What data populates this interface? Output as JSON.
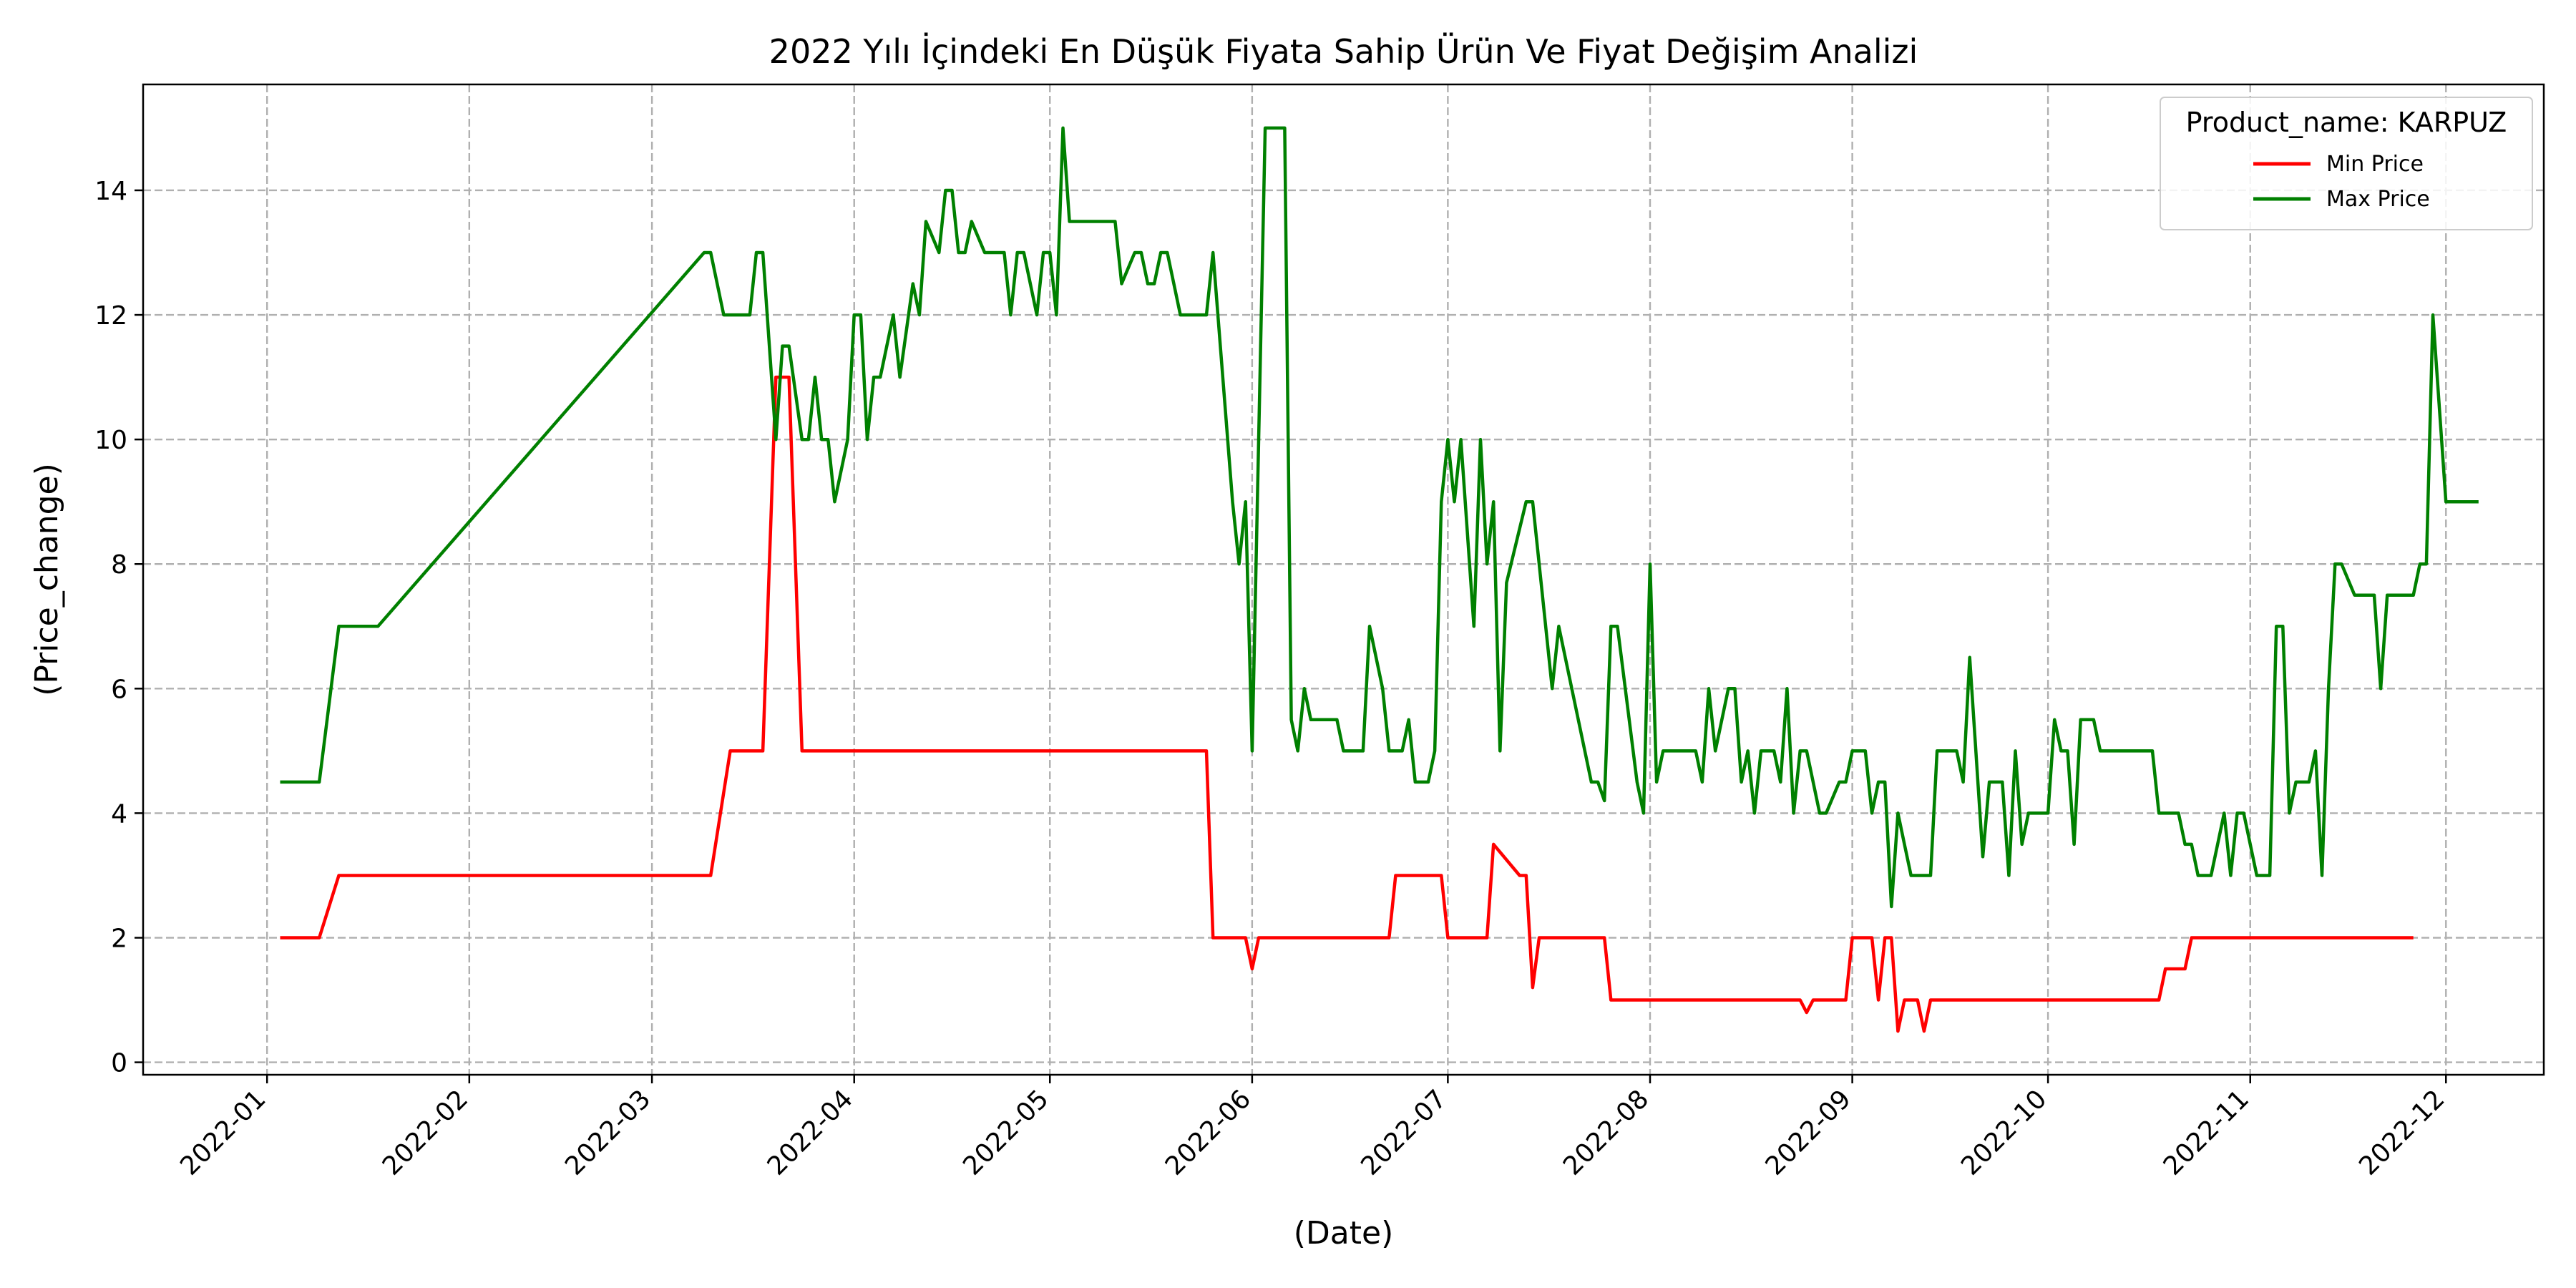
{
  "chart_data": {
    "type": "line",
    "title": "2022 Yılı İçindeki En Düşük Fiyata Sahip Ürün Ve Fiyat Değişim Analizi",
    "xlabel": "(Date)",
    "ylabel": "(Price_change)",
    "xlim": [
      "2021-12-13",
      "2022-12-16"
    ],
    "ylim": [
      -0.2,
      15.7
    ],
    "x_ticks": [
      "2022-01-01",
      "2022-02-01",
      "2022-03-01",
      "2022-04-01",
      "2022-05-01",
      "2022-06-01",
      "2022-07-01",
      "2022-08-01",
      "2022-09-01",
      "2022-10-01",
      "2022-11-01",
      "2022-12-01"
    ],
    "y_ticks": [
      0,
      2,
      4,
      6,
      8,
      10,
      12,
      14
    ],
    "grid": true,
    "legend": {
      "title": "Product_name: KARPUZ",
      "placement": "top-right"
    },
    "series": [
      {
        "name": "Min Price",
        "color": "#ff0000",
        "points": [
          [
            "2022-01-03",
            2
          ],
          [
            "2022-01-09",
            2
          ],
          [
            "2022-01-12",
            3
          ],
          [
            "2022-03-10",
            3
          ],
          [
            "2022-03-13",
            5
          ],
          [
            "2022-03-18",
            5
          ],
          [
            "2022-03-20",
            11
          ],
          [
            "2022-03-22",
            11
          ],
          [
            "2022-03-24",
            5
          ],
          [
            "2022-05-25",
            5
          ],
          [
            "2022-05-26",
            2
          ],
          [
            "2022-05-31",
            2
          ],
          [
            "2022-06-01",
            1.5
          ],
          [
            "2022-06-02",
            2
          ],
          [
            "2022-06-22",
            2
          ],
          [
            "2022-06-23",
            3
          ],
          [
            "2022-06-30",
            3
          ],
          [
            "2022-07-01",
            2
          ],
          [
            "2022-07-07",
            2
          ],
          [
            "2022-07-08",
            3.5
          ],
          [
            "2022-07-12",
            3
          ],
          [
            "2022-07-13",
            3
          ],
          [
            "2022-07-14",
            1.2
          ],
          [
            "2022-07-15",
            2
          ],
          [
            "2022-07-25",
            2
          ],
          [
            "2022-07-26",
            1
          ],
          [
            "2022-08-24",
            1
          ],
          [
            "2022-08-25",
            0.8
          ],
          [
            "2022-08-26",
            1
          ],
          [
            "2022-08-31",
            1
          ],
          [
            "2022-09-01",
            2
          ],
          [
            "2022-09-04",
            2
          ],
          [
            "2022-09-05",
            1
          ],
          [
            "2022-09-06",
            2
          ],
          [
            "2022-09-07",
            2
          ],
          [
            "2022-09-08",
            0.5
          ],
          [
            "2022-09-09",
            1
          ],
          [
            "2022-09-11",
            1
          ],
          [
            "2022-09-12",
            0.5
          ],
          [
            "2022-09-13",
            1
          ],
          [
            "2022-10-18",
            1
          ],
          [
            "2022-10-19",
            1.5
          ],
          [
            "2022-10-22",
            1.5
          ],
          [
            "2022-10-23",
            2
          ],
          [
            "2022-11-26",
            2
          ]
        ]
      },
      {
        "name": "Max Price",
        "color": "#008000",
        "points": [
          [
            "2022-01-03",
            4.5
          ],
          [
            "2022-01-09",
            4.5
          ],
          [
            "2022-01-12",
            7
          ],
          [
            "2022-01-18",
            7
          ],
          [
            "2022-03-09",
            13
          ],
          [
            "2022-03-10",
            13
          ],
          [
            "2022-03-12",
            12
          ],
          [
            "2022-03-16",
            12
          ],
          [
            "2022-03-17",
            13
          ],
          [
            "2022-03-18",
            13
          ],
          [
            "2022-03-20",
            10
          ],
          [
            "2022-03-21",
            11.5
          ],
          [
            "2022-03-22",
            11.5
          ],
          [
            "2022-03-24",
            10
          ],
          [
            "2022-03-25",
            10
          ],
          [
            "2022-03-26",
            11
          ],
          [
            "2022-03-27",
            10
          ],
          [
            "2022-03-28",
            10
          ],
          [
            "2022-03-29",
            9
          ],
          [
            "2022-03-31",
            10
          ],
          [
            "2022-04-01",
            12
          ],
          [
            "2022-04-02",
            12
          ],
          [
            "2022-04-03",
            10
          ],
          [
            "2022-04-04",
            11
          ],
          [
            "2022-04-05",
            11
          ],
          [
            "2022-04-07",
            12
          ],
          [
            "2022-04-08",
            11
          ],
          [
            "2022-04-10",
            12.5
          ],
          [
            "2022-04-11",
            12
          ],
          [
            "2022-04-12",
            13.5
          ],
          [
            "2022-04-14",
            13
          ],
          [
            "2022-04-15",
            14
          ],
          [
            "2022-04-16",
            14
          ],
          [
            "2022-04-17",
            13
          ],
          [
            "2022-04-18",
            13
          ],
          [
            "2022-04-19",
            13.5
          ],
          [
            "2022-04-21",
            13
          ],
          [
            "2022-04-24",
            13
          ],
          [
            "2022-04-25",
            12
          ],
          [
            "2022-04-26",
            13
          ],
          [
            "2022-04-27",
            13
          ],
          [
            "2022-04-29",
            12
          ],
          [
            "2022-04-30",
            13
          ],
          [
            "2022-05-01",
            13
          ],
          [
            "2022-05-02",
            12
          ],
          [
            "2022-05-03",
            15
          ],
          [
            "2022-05-04",
            13.5
          ],
          [
            "2022-05-11",
            13.5
          ],
          [
            "2022-05-12",
            12.5
          ],
          [
            "2022-05-14",
            13
          ],
          [
            "2022-05-15",
            13
          ],
          [
            "2022-05-16",
            12.5
          ],
          [
            "2022-05-17",
            12.5
          ],
          [
            "2022-05-18",
            13
          ],
          [
            "2022-05-19",
            13
          ],
          [
            "2022-05-21",
            12
          ],
          [
            "2022-05-25",
            12
          ],
          [
            "2022-05-26",
            13
          ],
          [
            "2022-05-29",
            9
          ],
          [
            "2022-05-30",
            8
          ],
          [
            "2022-05-31",
            9
          ],
          [
            "2022-06-01",
            5
          ],
          [
            "2022-06-03",
            15
          ],
          [
            "2022-06-06",
            15
          ],
          [
            "2022-06-07",
            5.5
          ],
          [
            "2022-06-08",
            5
          ],
          [
            "2022-06-09",
            6
          ],
          [
            "2022-06-10",
            5.5
          ],
          [
            "2022-06-14",
            5.5
          ],
          [
            "2022-06-15",
            5
          ],
          [
            "2022-06-18",
            5
          ],
          [
            "2022-06-19",
            7
          ],
          [
            "2022-06-21",
            6
          ],
          [
            "2022-06-22",
            5
          ],
          [
            "2022-06-24",
            5
          ],
          [
            "2022-06-25",
            5.5
          ],
          [
            "2022-06-26",
            4.5
          ],
          [
            "2022-06-28",
            4.5
          ],
          [
            "2022-06-29",
            5
          ],
          [
            "2022-06-30",
            9
          ],
          [
            "2022-07-01",
            10
          ],
          [
            "2022-07-02",
            9
          ],
          [
            "2022-07-03",
            10
          ],
          [
            "2022-07-05",
            7
          ],
          [
            "2022-07-06",
            10
          ],
          [
            "2022-07-07",
            8
          ],
          [
            "2022-07-08",
            9
          ],
          [
            "2022-07-09",
            5
          ],
          [
            "2022-07-10",
            7.7
          ],
          [
            "2022-07-13",
            9
          ],
          [
            "2022-07-14",
            9
          ],
          [
            "2022-07-17",
            6
          ],
          [
            "2022-07-18",
            7
          ],
          [
            "2022-07-23",
            4.5
          ],
          [
            "2022-07-24",
            4.5
          ],
          [
            "2022-07-25",
            4.2
          ],
          [
            "2022-07-26",
            7
          ],
          [
            "2022-07-27",
            7
          ],
          [
            "2022-07-30",
            4.5
          ],
          [
            "2022-07-31",
            4
          ],
          [
            "2022-08-01",
            8
          ],
          [
            "2022-08-02",
            4.5
          ],
          [
            "2022-08-03",
            5
          ],
          [
            "2022-08-08",
            5
          ],
          [
            "2022-08-09",
            4.5
          ],
          [
            "2022-08-10",
            6
          ],
          [
            "2022-08-11",
            5
          ],
          [
            "2022-08-13",
            6
          ],
          [
            "2022-08-14",
            6
          ],
          [
            "2022-08-15",
            4.5
          ],
          [
            "2022-08-16",
            5
          ],
          [
            "2022-08-17",
            4
          ],
          [
            "2022-08-18",
            5
          ],
          [
            "2022-08-20",
            5
          ],
          [
            "2022-08-21",
            4.5
          ],
          [
            "2022-08-22",
            6
          ],
          [
            "2022-08-23",
            4
          ],
          [
            "2022-08-24",
            5
          ],
          [
            "2022-08-25",
            5
          ],
          [
            "2022-08-27",
            4
          ],
          [
            "2022-08-28",
            4
          ],
          [
            "2022-08-30",
            4.5
          ],
          [
            "2022-08-31",
            4.5
          ],
          [
            "2022-09-01",
            5
          ],
          [
            "2022-09-03",
            5
          ],
          [
            "2022-09-04",
            4
          ],
          [
            "2022-09-05",
            4.5
          ],
          [
            "2022-09-06",
            4.5
          ],
          [
            "2022-09-07",
            2.5
          ],
          [
            "2022-09-08",
            4
          ],
          [
            "2022-09-09",
            3.5
          ],
          [
            "2022-09-10",
            3
          ],
          [
            "2022-09-13",
            3
          ],
          [
            "2022-09-14",
            5
          ],
          [
            "2022-09-17",
            5
          ],
          [
            "2022-09-18",
            4.5
          ],
          [
            "2022-09-19",
            6.5
          ],
          [
            "2022-09-21",
            3.3
          ],
          [
            "2022-09-22",
            4.5
          ],
          [
            "2022-09-24",
            4.5
          ],
          [
            "2022-09-25",
            3
          ],
          [
            "2022-09-26",
            5
          ],
          [
            "2022-09-27",
            3.5
          ],
          [
            "2022-09-28",
            4
          ],
          [
            "2022-09-29",
            4
          ],
          [
            "2022-10-01",
            4
          ],
          [
            "2022-10-02",
            5.5
          ],
          [
            "2022-10-03",
            5
          ],
          [
            "2022-10-04",
            5
          ],
          [
            "2022-10-05",
            3.5
          ],
          [
            "2022-10-06",
            5.5
          ],
          [
            "2022-10-08",
            5.5
          ],
          [
            "2022-10-09",
            5
          ],
          [
            "2022-10-17",
            5
          ],
          [
            "2022-10-18",
            4
          ],
          [
            "2022-10-21",
            4
          ],
          [
            "2022-10-22",
            3.5
          ],
          [
            "2022-10-23",
            3.5
          ],
          [
            "2022-10-24",
            3
          ],
          [
            "2022-10-26",
            3
          ],
          [
            "2022-10-28",
            4
          ],
          [
            "2022-10-29",
            3
          ],
          [
            "2022-10-30",
            4
          ],
          [
            "2022-10-31",
            4
          ],
          [
            "2022-11-02",
            3
          ],
          [
            "2022-11-04",
            3
          ],
          [
            "2022-11-05",
            7
          ],
          [
            "2022-11-06",
            7
          ],
          [
            "2022-11-07",
            4
          ],
          [
            "2022-11-08",
            4.5
          ],
          [
            "2022-11-10",
            4.5
          ],
          [
            "2022-11-11",
            5
          ],
          [
            "2022-11-12",
            3
          ],
          [
            "2022-11-13",
            6
          ],
          [
            "2022-11-14",
            8
          ],
          [
            "2022-11-15",
            8
          ],
          [
            "2022-11-17",
            7.5
          ],
          [
            "2022-11-20",
            7.5
          ],
          [
            "2022-11-21",
            6
          ],
          [
            "2022-11-22",
            7.5
          ],
          [
            "2022-11-26",
            7.5
          ],
          [
            "2022-11-27",
            8
          ],
          [
            "2022-11-28",
            8
          ],
          [
            "2022-11-29",
            12
          ],
          [
            "2022-12-01",
            9
          ],
          [
            "2022-12-06",
            9
          ]
        ]
      }
    ]
  }
}
